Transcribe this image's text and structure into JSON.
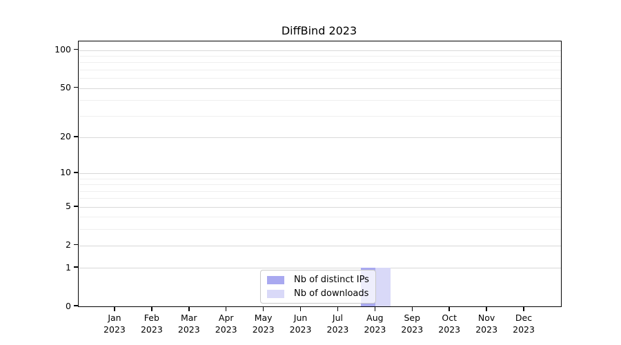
{
  "chart_data": {
    "type": "bar",
    "title": "DiffBind 2023",
    "year": "2023",
    "months": [
      "Jan",
      "Feb",
      "Mar",
      "Apr",
      "May",
      "Jun",
      "Jul",
      "Aug",
      "Sep",
      "Oct",
      "Nov",
      "Dec"
    ],
    "categories": [
      "Jan 2023",
      "Feb 2023",
      "Mar 2023",
      "Apr 2023",
      "May 2023",
      "Jun 2023",
      "Jul 2023",
      "Aug 2023",
      "Sep 2023",
      "Oct 2023",
      "Nov 2023",
      "Dec 2023"
    ],
    "series": [
      {
        "name": "Nb of distinct IPs",
        "color": "#a9a9f0",
        "values": [
          0,
          0,
          0,
          0,
          0,
          0,
          0,
          1,
          0,
          0,
          0,
          0
        ]
      },
      {
        "name": "Nb of downloads",
        "color": "#d9d9f8",
        "values": [
          0,
          0,
          0,
          0,
          0,
          0,
          0,
          1,
          0,
          0,
          0,
          0
        ]
      }
    ],
    "yscale": "log1p",
    "ylim": [
      0,
      117
    ],
    "y_major_ticks": [
      0,
      1,
      2,
      5,
      10,
      20,
      50,
      100
    ],
    "y_minor_gridlines": [
      3,
      4,
      6,
      7,
      8,
      9,
      30,
      40,
      60,
      70,
      80,
      90
    ],
    "grid": {
      "major_color": "#d8d8d8",
      "minor_color": "#efefef"
    },
    "legend_position": "bottom-center",
    "axis_color": "#000000",
    "background": "#ffffff"
  }
}
